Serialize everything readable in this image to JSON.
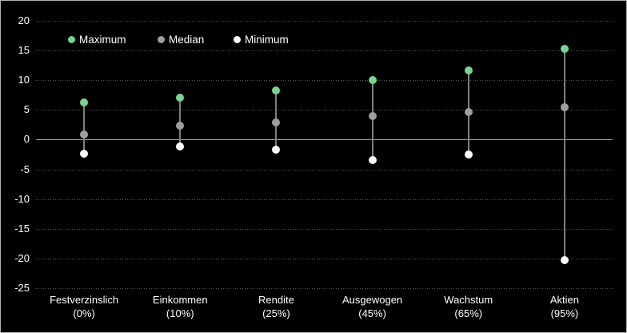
{
  "chart_data": {
    "type": "scatter",
    "variant": "min-median-max-range-dot-plot",
    "categories": [
      "Festverzinslich",
      "Einkommen",
      "Rendite",
      "Ausgewogen",
      "Wachstum",
      "Aktien"
    ],
    "category_sublabels": [
      "(0%)",
      "(10%)",
      "(25%)",
      "(45%)",
      "(65%)",
      "(95%)"
    ],
    "series": [
      {
        "name": "Maximum",
        "color": "#78d291",
        "values": [
          6.3,
          7.0,
          8.3,
          10.0,
          11.6,
          15.3
        ]
      },
      {
        "name": "Median",
        "color": "#9e9e9e",
        "values": [
          0.9,
          2.3,
          2.9,
          3.9,
          4.6,
          5.5
        ]
      },
      {
        "name": "Minimum",
        "color": "#ffffff",
        "values": [
          -2.3,
          -1.1,
          -1.7,
          -3.5,
          -2.5,
          -20.3
        ]
      }
    ],
    "y_axis": {
      "min": -25,
      "max": 20,
      "step": 5,
      "tick_labels": [
        "20",
        "15",
        "10",
        "5",
        "0",
        "-5",
        "-10",
        "-15",
        "-20",
        "-25"
      ]
    },
    "legend_position": "top-left",
    "grid": "horizontal-dotted",
    "ylim": [
      -25,
      20
    ],
    "colors": {
      "background": "#000000",
      "text": "#ffffff",
      "gridline": "#585858",
      "zero_line": "#a6a6a6",
      "stem": "#7f7f7f",
      "frame_border": "#b3b3b3"
    }
  }
}
